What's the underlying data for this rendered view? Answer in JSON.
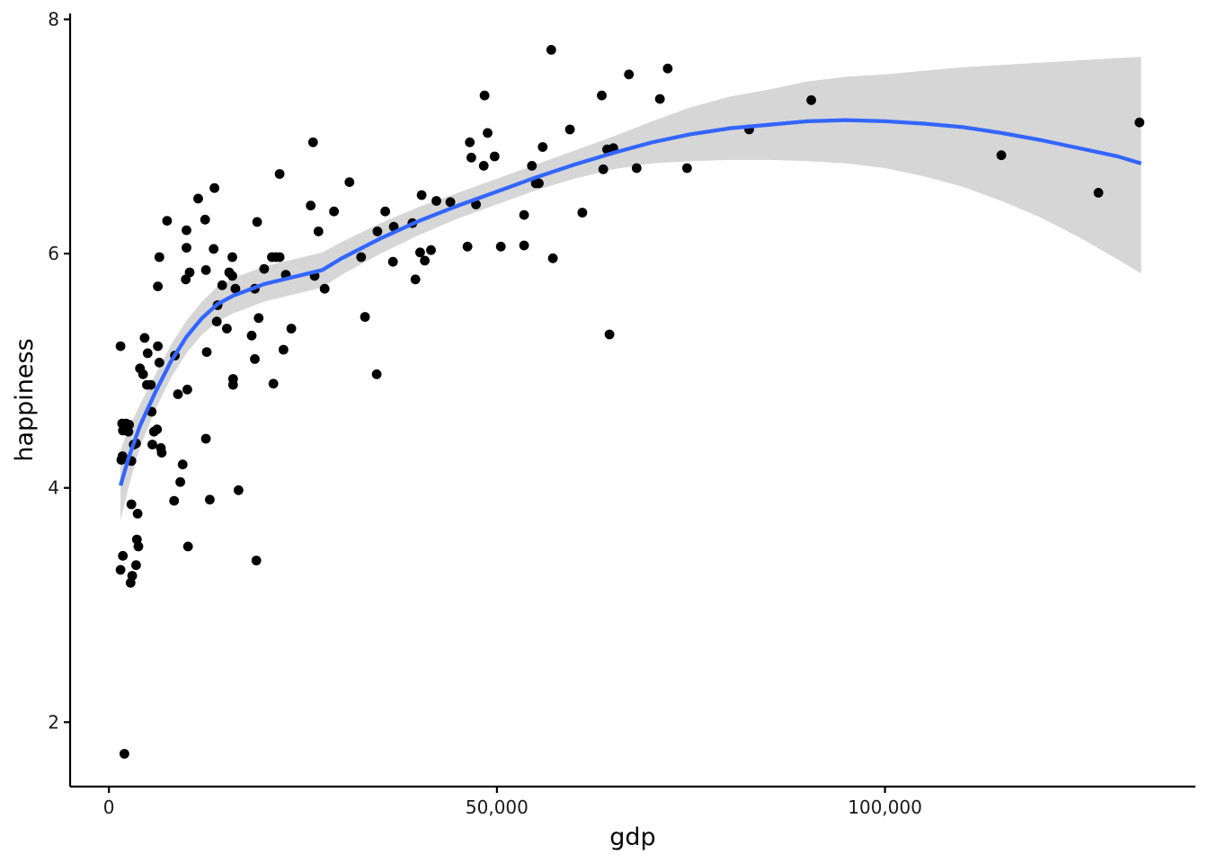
{
  "chart_data": {
    "type": "scatter",
    "xlabel": "gdp",
    "ylabel": "happiness",
    "xlim": [
      -5000,
      140000
    ],
    "ylim": [
      1.45,
      8.05
    ],
    "x_ticks": [
      {
        "value": 0,
        "label": "0"
      },
      {
        "value": 50000,
        "label": "50,000"
      },
      {
        "value": 100000,
        "label": "100,000"
      }
    ],
    "y_ticks": [
      {
        "value": 2,
        "label": "2"
      },
      {
        "value": 4,
        "label": "4"
      },
      {
        "value": 6,
        "label": "6"
      },
      {
        "value": 8,
        "label": "8"
      }
    ],
    "grid": false,
    "legend": "none",
    "colors": {
      "points": "#000000",
      "smooth_line": "#3366FF",
      "confidence_band": "#999999"
    },
    "points": [
      [
        1500,
        5.21
      ],
      [
        1700,
        4.55
      ],
      [
        1750,
        4.27
      ],
      [
        1800,
        4.49
      ],
      [
        1600,
        4.24
      ],
      [
        1800,
        3.42
      ],
      [
        1500,
        3.3
      ],
      [
        2000,
        1.73
      ],
      [
        2200,
        4.55
      ],
      [
        2500,
        4.48
      ],
      [
        2600,
        4.54
      ],
      [
        2900,
        3.86
      ],
      [
        2800,
        3.19
      ],
      [
        3000,
        3.25
      ],
      [
        2900,
        4.23
      ],
      [
        3200,
        4.37
      ],
      [
        3500,
        4.38
      ],
      [
        3500,
        3.34
      ],
      [
        3600,
        3.56
      ],
      [
        3700,
        3.78
      ],
      [
        3800,
        3.5
      ],
      [
        4000,
        5.02
      ],
      [
        4400,
        4.97
      ],
      [
        4600,
        5.28
      ],
      [
        4900,
        4.88
      ],
      [
        5000,
        5.15
      ],
      [
        5400,
        4.88
      ],
      [
        5500,
        4.65
      ],
      [
        5600,
        4.37
      ],
      [
        5800,
        4.48
      ],
      [
        6200,
        4.5
      ],
      [
        6300,
        5.21
      ],
      [
        6500,
        5.07
      ],
      [
        6300,
        5.72
      ],
      [
        6500,
        5.97
      ],
      [
        6700,
        4.34
      ],
      [
        6800,
        4.3
      ],
      [
        7500,
        6.28
      ],
      [
        8400,
        3.89
      ],
      [
        8500,
        5.13
      ],
      [
        8900,
        4.8
      ],
      [
        9200,
        4.05
      ],
      [
        9500,
        4.2
      ],
      [
        9900,
        5.78
      ],
      [
        10000,
        6.05
      ],
      [
        10000,
        6.2
      ],
      [
        10100,
        4.84
      ],
      [
        10200,
        3.5
      ],
      [
        10400,
        5.84
      ],
      [
        11500,
        6.47
      ],
      [
        12400,
        6.29
      ],
      [
        12500,
        5.86
      ],
      [
        12500,
        4.42
      ],
      [
        12600,
        5.16
      ],
      [
        13000,
        3.9
      ],
      [
        13500,
        6.04
      ],
      [
        13600,
        6.56
      ],
      [
        13900,
        5.42
      ],
      [
        14000,
        5.56
      ],
      [
        14600,
        5.73
      ],
      [
        15200,
        5.36
      ],
      [
        15500,
        5.84
      ],
      [
        15900,
        5.81
      ],
      [
        15900,
        5.97
      ],
      [
        16000,
        4.93
      ],
      [
        16000,
        4.88
      ],
      [
        16300,
        5.7
      ],
      [
        16700,
        3.98
      ],
      [
        18400,
        5.3
      ],
      [
        18800,
        5.7
      ],
      [
        18800,
        5.1
      ],
      [
        19000,
        3.38
      ],
      [
        19100,
        6.27
      ],
      [
        19300,
        5.45
      ],
      [
        20000,
        5.87
      ],
      [
        21000,
        5.97
      ],
      [
        21200,
        4.89
      ],
      [
        21500,
        5.97
      ],
      [
        22000,
        5.97
      ],
      [
        22000,
        6.68
      ],
      [
        22500,
        5.18
      ],
      [
        22800,
        5.82
      ],
      [
        23500,
        5.36
      ],
      [
        26000,
        6.41
      ],
      [
        26300,
        6.95
      ],
      [
        26500,
        5.81
      ],
      [
        27000,
        6.19
      ],
      [
        27800,
        5.7
      ],
      [
        29000,
        6.36
      ],
      [
        31000,
        6.61
      ],
      [
        32500,
        5.97
      ],
      [
        33000,
        5.46
      ],
      [
        34500,
        4.97
      ],
      [
        34600,
        6.19
      ],
      [
        35600,
        6.36
      ],
      [
        36600,
        5.93
      ],
      [
        36700,
        6.23
      ],
      [
        39100,
        6.26
      ],
      [
        39500,
        5.78
      ],
      [
        40100,
        6.01
      ],
      [
        40300,
        6.5
      ],
      [
        40700,
        5.94
      ],
      [
        41500,
        6.03
      ],
      [
        42200,
        6.45
      ],
      [
        44000,
        6.44
      ],
      [
        46200,
        6.06
      ],
      [
        46500,
        6.95
      ],
      [
        46700,
        6.82
      ],
      [
        47300,
        6.42
      ],
      [
        48300,
        6.75
      ],
      [
        48400,
        7.35
      ],
      [
        48800,
        7.03
      ],
      [
        49700,
        6.83
      ],
      [
        50500,
        6.06
      ],
      [
        53500,
        6.07
      ],
      [
        53500,
        6.33
      ],
      [
        54500,
        6.75
      ],
      [
        55000,
        6.6
      ],
      [
        55400,
        6.6
      ],
      [
        55900,
        6.91
      ],
      [
        57000,
        7.74
      ],
      [
        57200,
        5.96
      ],
      [
        59400,
        7.06
      ],
      [
        61000,
        6.35
      ],
      [
        63500,
        7.35
      ],
      [
        63700,
        6.72
      ],
      [
        64200,
        6.89
      ],
      [
        64500,
        5.31
      ],
      [
        65000,
        6.9
      ],
      [
        67000,
        7.53
      ],
      [
        68000,
        6.73
      ],
      [
        71000,
        7.32
      ],
      [
        72000,
        7.58
      ],
      [
        74500,
        6.73
      ],
      [
        82500,
        7.06
      ],
      [
        90500,
        7.31
      ],
      [
        115000,
        6.84
      ],
      [
        127500,
        6.52
      ],
      [
        132800,
        7.12
      ]
    ],
    "smooth_curve": [
      [
        1500,
        4.02
      ],
      [
        2500,
        4.25
      ],
      [
        4000,
        4.53
      ],
      [
        6000,
        4.82
      ],
      [
        8000,
        5.08
      ],
      [
        10000,
        5.29
      ],
      [
        12000,
        5.45
      ],
      [
        14000,
        5.57
      ],
      [
        16000,
        5.64
      ],
      [
        18000,
        5.69
      ],
      [
        20000,
        5.74
      ],
      [
        22500,
        5.78
      ],
      [
        25000,
        5.82
      ],
      [
        27500,
        5.86
      ],
      [
        30000,
        5.96
      ],
      [
        35000,
        6.13
      ],
      [
        40000,
        6.28
      ],
      [
        45000,
        6.41
      ],
      [
        50000,
        6.53
      ],
      [
        55000,
        6.65
      ],
      [
        60000,
        6.76
      ],
      [
        65000,
        6.86
      ],
      [
        70000,
        6.95
      ],
      [
        75000,
        7.02
      ],
      [
        80000,
        7.07
      ],
      [
        85000,
        7.1
      ],
      [
        90000,
        7.13
      ],
      [
        95000,
        7.14
      ],
      [
        100000,
        7.13
      ],
      [
        105000,
        7.11
      ],
      [
        110000,
        7.08
      ],
      [
        115000,
        7.03
      ],
      [
        120000,
        6.97
      ],
      [
        125000,
        6.9
      ],
      [
        130000,
        6.83
      ],
      [
        133000,
        6.77
      ]
    ],
    "confidence_band": [
      [
        1500,
        3.72,
        4.32
      ],
      [
        2500,
        4.0,
        4.5
      ],
      [
        4000,
        4.35,
        4.71
      ],
      [
        6000,
        4.67,
        4.97
      ],
      [
        8000,
        4.94,
        5.22
      ],
      [
        10000,
        5.15,
        5.43
      ],
      [
        12000,
        5.31,
        5.59
      ],
      [
        14000,
        5.42,
        5.72
      ],
      [
        16000,
        5.49,
        5.79
      ],
      [
        18000,
        5.54,
        5.84
      ],
      [
        20000,
        5.59,
        5.89
      ],
      [
        22500,
        5.63,
        5.93
      ],
      [
        25000,
        5.67,
        5.97
      ],
      [
        27500,
        5.71,
        6.01
      ],
      [
        30000,
        5.82,
        6.1
      ],
      [
        35000,
        6.0,
        6.26
      ],
      [
        40000,
        6.16,
        6.4
      ],
      [
        45000,
        6.3,
        6.52
      ],
      [
        50000,
        6.42,
        6.64
      ],
      [
        55000,
        6.54,
        6.76
      ],
      [
        60000,
        6.64,
        6.88
      ],
      [
        65000,
        6.72,
        7.0
      ],
      [
        70000,
        6.77,
        7.13
      ],
      [
        75000,
        6.79,
        7.25
      ],
      [
        80000,
        6.8,
        7.34
      ],
      [
        85000,
        6.8,
        7.4
      ],
      [
        90000,
        6.79,
        7.47
      ],
      [
        95000,
        6.77,
        7.51
      ],
      [
        100000,
        6.73,
        7.53
      ],
      [
        105000,
        6.66,
        7.56
      ],
      [
        110000,
        6.57,
        7.59
      ],
      [
        115000,
        6.45,
        7.61
      ],
      [
        120000,
        6.31,
        7.63
      ],
      [
        125000,
        6.14,
        7.65
      ],
      [
        130000,
        5.95,
        7.67
      ],
      [
        133000,
        5.83,
        7.68
      ]
    ]
  }
}
